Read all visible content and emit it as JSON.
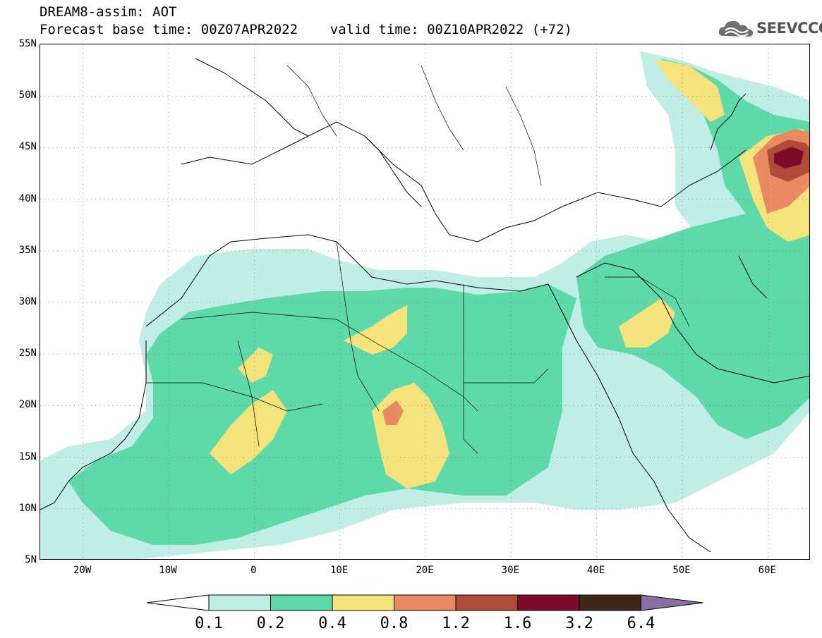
{
  "header": {
    "line1": "DREAM8-assim: AOT",
    "line2": "Forecast base time: 00Z07APR2022    valid time: 00Z10APR2022 (+72)",
    "logo_text": "SEEVCCC",
    "logo_icon": "cloud-logo-icon"
  },
  "map": {
    "region": "North Africa, Europe and Middle East",
    "projection": "lat-lon",
    "lon_range": [
      -25,
      65
    ],
    "lat_range": [
      5,
      55
    ],
    "lat_ticks": [
      {
        "value": 55,
        "label": "55N"
      },
      {
        "value": 50,
        "label": "50N"
      },
      {
        "value": 45,
        "label": "45N"
      },
      {
        "value": 40,
        "label": "40N"
      },
      {
        "value": 35,
        "label": "35N"
      },
      {
        "value": 30,
        "label": "30N"
      },
      {
        "value": 25,
        "label": "25N"
      },
      {
        "value": 20,
        "label": "20N"
      },
      {
        "value": 15,
        "label": "15N"
      },
      {
        "value": 10,
        "label": "10N"
      },
      {
        "value": 5,
        "label": "5N"
      }
    ],
    "lon_ticks": [
      {
        "value": -20,
        "label": "20W"
      },
      {
        "value": -10,
        "label": "10W"
      },
      {
        "value": 0,
        "label": "0"
      },
      {
        "value": 10,
        "label": "10E"
      },
      {
        "value": 20,
        "label": "20E"
      },
      {
        "value": 30,
        "label": "30E"
      },
      {
        "value": 40,
        "label": "40E"
      },
      {
        "value": 50,
        "label": "50E"
      },
      {
        "value": 60,
        "label": "60E"
      }
    ],
    "grid": "dotted"
  },
  "colorbar": {
    "levels": [
      "0.1",
      "0.2",
      "0.4",
      "0.8",
      "1.2",
      "1.6",
      "3.2",
      "6.4"
    ],
    "colors": [
      "#ffffff",
      "#c0eee6",
      "#5ed9a9",
      "#f4e27a",
      "#e98a62",
      "#b04a3a",
      "#7c0a2a",
      "#3e2716",
      "#8a6ea6"
    ]
  }
}
